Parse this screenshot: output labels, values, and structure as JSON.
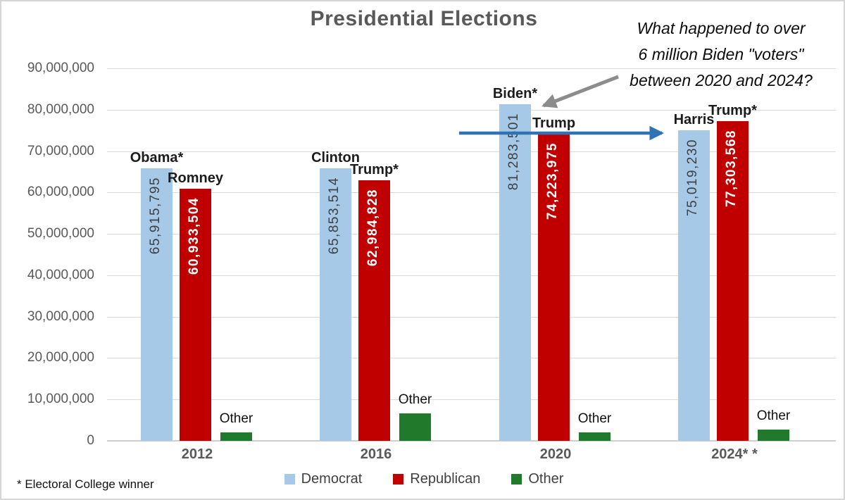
{
  "title": "Presidential Elections",
  "annotation": {
    "lines": [
      "What happened to over",
      "6 million Biden \"voters\"",
      "between 2020 and 2024?"
    ]
  },
  "footnote": "* Electoral College winner",
  "arrows": {
    "annotation_arrow_color": "#8c8c8c",
    "comparison_arrow_color": "#2e74b5"
  },
  "legend": {
    "items": [
      {
        "label": "Democrat",
        "color": "#a6c9e8"
      },
      {
        "label": "Republican",
        "color": "#c00000"
      },
      {
        "label": "Other",
        "color": "#217a2b"
      }
    ]
  },
  "chart_data": {
    "type": "bar",
    "title": "Presidential Elections",
    "categories": [
      "2012",
      "2016",
      "2020",
      "2024* *"
    ],
    "series": [
      {
        "name": "Democrat",
        "color": "#a6c9e8",
        "candidates": [
          "Obama*",
          "Clinton",
          "Biden*",
          "Harris"
        ],
        "values": [
          65915795,
          65853514,
          81283501,
          75019230
        ],
        "data_labels": [
          "65,915,795",
          "65,853,514",
          "81,283,501",
          "75,019,230"
        ]
      },
      {
        "name": "Republican",
        "color": "#c00000",
        "candidates": [
          "Romney",
          "Trump*",
          "Trump",
          "Trump*"
        ],
        "values": [
          60933504,
          62984828,
          74223975,
          77303568
        ],
        "data_labels": [
          "60,933,504",
          "62,984,828",
          "74,223,975",
          "77,303,568"
        ]
      },
      {
        "name": "Other",
        "color": "#217a2b",
        "candidates": [
          "Other",
          "Other",
          "Other",
          "Other"
        ],
        "values": [
          2000000,
          6600000,
          2000000,
          2700000
        ],
        "data_labels": [
          "",
          "",
          "",
          ""
        ]
      }
    ],
    "ylim": [
      0,
      90000000
    ],
    "y_tick_values": [
      0,
      10000000,
      20000000,
      30000000,
      40000000,
      50000000,
      60000000,
      70000000,
      80000000,
      90000000
    ],
    "y_tick_labels": [
      "0",
      "10,000,000",
      "20,000,000",
      "30,000,000",
      "40,000,000",
      "50,000,000",
      "60,000,000",
      "70,000,000",
      "80,000,000",
      "90,000,000"
    ],
    "grid": true,
    "legend_position": "bottom",
    "footnote": "* Electoral College winner"
  }
}
